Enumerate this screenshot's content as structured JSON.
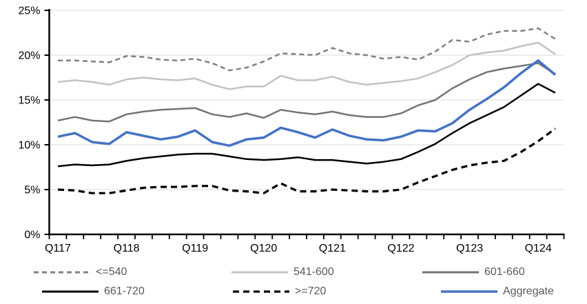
{
  "chart_data": {
    "type": "line",
    "title": "",
    "n_points": 30,
    "x_tick_labels": [
      {
        "index": 0,
        "label": "Q117"
      },
      {
        "index": 4,
        "label": "Q118"
      },
      {
        "index": 8,
        "label": "Q119"
      },
      {
        "index": 12,
        "label": "Q120"
      },
      {
        "index": 16,
        "label": "Q121"
      },
      {
        "index": 20,
        "label": "Q122"
      },
      {
        "index": 24,
        "label": "Q123"
      },
      {
        "index": 28,
        "label": "Q124"
      }
    ],
    "ylim": [
      0,
      25
    ],
    "y_ticks": [
      {
        "value": 0,
        "label": "0%"
      },
      {
        "value": 5,
        "label": "5%"
      },
      {
        "value": 10,
        "label": "10%"
      },
      {
        "value": 15,
        "label": "15%"
      },
      {
        "value": 20,
        "label": "20%"
      },
      {
        "value": 25,
        "label": "25%"
      }
    ],
    "grid": "horizontal",
    "gridline_color": "#d9d9d9",
    "axis_color": "#000000",
    "legend_position": "bottom",
    "legend_text_color": "#595959",
    "series": [
      {
        "name": "<=540",
        "color": "#808080",
        "dash": "7 5",
        "width": 2.5,
        "values": [
          19.4,
          19.4,
          19.3,
          19.2,
          19.9,
          19.8,
          19.5,
          19.4,
          19.6,
          19.1,
          18.3,
          18.6,
          19.3,
          20.2,
          20.1,
          20.0,
          20.8,
          20.2,
          20.0,
          19.6,
          19.8,
          19.5,
          20.4,
          21.7,
          21.5,
          22.3,
          22.7,
          22.7,
          23.0,
          21.8
        ]
      },
      {
        "name": "541-600",
        "color": "#c2c2c2",
        "dash": "",
        "width": 2.5,
        "values": [
          17.0,
          17.2,
          17.0,
          16.7,
          17.3,
          17.5,
          17.3,
          17.2,
          17.4,
          16.7,
          16.2,
          16.5,
          16.5,
          17.7,
          17.2,
          17.2,
          17.6,
          17.0,
          16.7,
          16.9,
          17.1,
          17.4,
          18.1,
          18.9,
          20.0,
          20.3,
          20.5,
          21.0,
          21.4,
          20.1
        ]
      },
      {
        "name": "601-660",
        "color": "#737373",
        "dash": "",
        "width": 2.5,
        "values": [
          12.7,
          13.1,
          12.7,
          12.6,
          13.4,
          13.7,
          13.9,
          14.0,
          14.1,
          13.4,
          13.1,
          13.5,
          13.0,
          13.9,
          13.6,
          13.4,
          13.7,
          13.3,
          13.1,
          13.1,
          13.5,
          14.4,
          15.0,
          16.3,
          17.3,
          18.1,
          18.5,
          18.8,
          19.1,
          17.9
        ]
      },
      {
        "name": "661-720",
        "color": "#000000",
        "dash": "",
        "width": 2.5,
        "values": [
          7.6,
          7.8,
          7.7,
          7.8,
          8.2,
          8.5,
          8.7,
          8.9,
          9.0,
          9.0,
          8.7,
          8.4,
          8.3,
          8.4,
          8.6,
          8.3,
          8.3,
          8.1,
          7.9,
          8.1,
          8.4,
          9.2,
          10.1,
          11.3,
          12.4,
          13.3,
          14.2,
          15.5,
          16.8,
          15.8
        ]
      },
      {
        "name": ">=720",
        "color": "#000000",
        "dash": "9 6",
        "width": 3.2,
        "values": [
          5.0,
          4.9,
          4.6,
          4.6,
          4.9,
          5.2,
          5.3,
          5.3,
          5.4,
          5.4,
          4.9,
          4.8,
          4.6,
          5.7,
          4.8,
          4.8,
          5.0,
          4.9,
          4.8,
          4.8,
          5.0,
          5.8,
          6.5,
          7.2,
          7.7,
          8.0,
          8.2,
          9.2,
          10.4,
          11.8
        ]
      },
      {
        "name": "Aggregate",
        "color": "#4472c4",
        "dash": "",
        "width": 3.5,
        "values": [
          10.9,
          11.3,
          10.3,
          10.1,
          11.4,
          11.0,
          10.6,
          10.9,
          11.6,
          10.3,
          9.9,
          10.6,
          10.8,
          11.9,
          11.4,
          10.8,
          11.7,
          11.0,
          10.6,
          10.5,
          10.9,
          11.6,
          11.5,
          12.4,
          13.9,
          15.1,
          16.4,
          18.0,
          19.4,
          17.8
        ]
      }
    ],
    "legend_rows": [
      {
        "series_indexes": [
          0,
          1,
          2
        ],
        "item_lefts": [
          48,
          335,
          612
        ]
      },
      {
        "series_indexes": [
          3,
          4,
          5
        ],
        "item_lefts": [
          60,
          337,
          639
        ]
      }
    ]
  }
}
